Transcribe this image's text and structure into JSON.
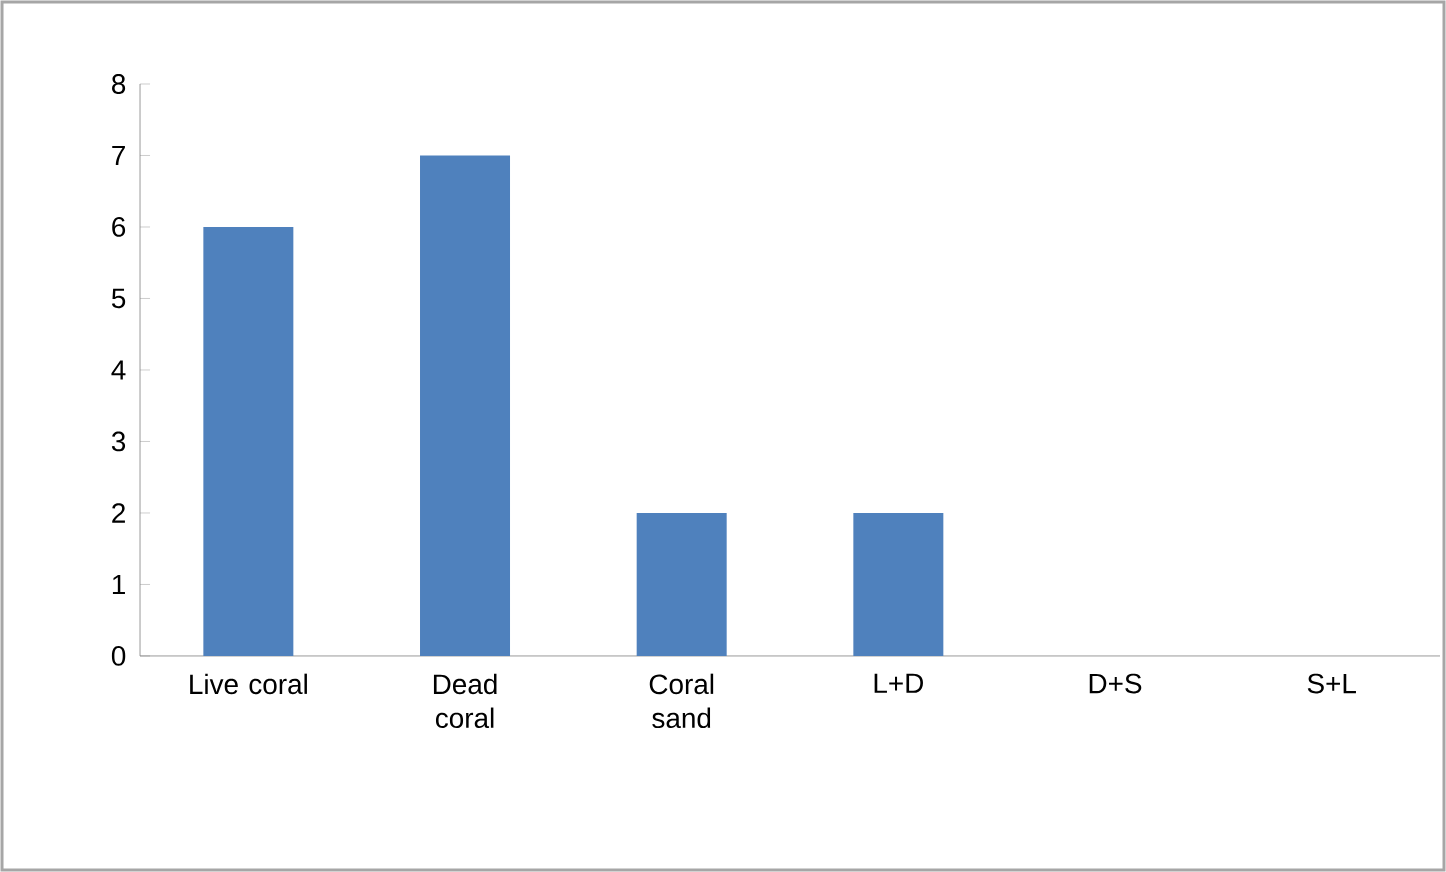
{
  "chart_data": {
    "type": "bar",
    "categories": [
      "Live coral",
      "Dead coral",
      "Coral sand",
      "L+D",
      "D+S",
      "S+L"
    ],
    "values": [
      6,
      7,
      2,
      2,
      0,
      0
    ],
    "color": "#4f81bd",
    "ylim": [
      0,
      8
    ],
    "yticks": [
      0,
      1,
      2,
      3,
      4,
      5,
      6,
      7,
      8
    ],
    "grid": false
  }
}
